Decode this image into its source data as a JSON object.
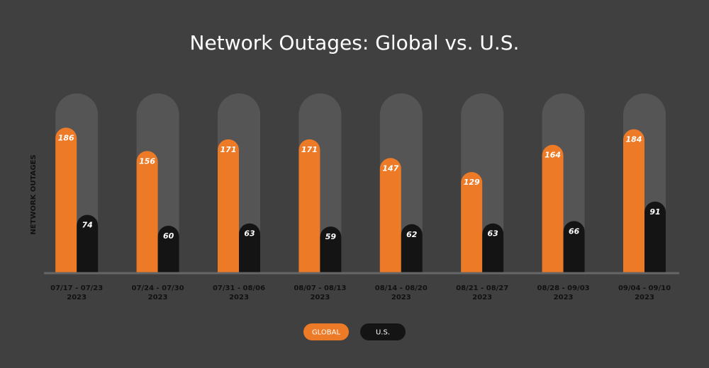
{
  "chart_data": {
    "type": "bar",
    "title": "Network Outages: Global vs. U.S.",
    "y_label": "NETWORK OUTAGES",
    "categories": [
      [
        "07/17 - 07/23",
        "2023"
      ],
      [
        "07/24 - 07/30",
        "2023"
      ],
      [
        "07/31 - 08/06",
        "2023"
      ],
      [
        "08/07 - 08/13",
        "2023"
      ],
      [
        "08/14 - 08/20",
        "2023"
      ],
      [
        "08/21 - 08/27",
        "2023"
      ],
      [
        "08/28 - 09/03",
        "2023"
      ],
      [
        "09/04 - 09/10",
        "2023"
      ]
    ],
    "series": [
      {
        "name": "GLOBAL",
        "color": "#ec7a26",
        "values": [
          186,
          156,
          171,
          171,
          147,
          129,
          164,
          184
        ]
      },
      {
        "name": "U.S.",
        "color": "#141414",
        "values": [
          74,
          60,
          63,
          59,
          62,
          63,
          66,
          91
        ]
      }
    ],
    "ylim": [
      0,
      230
    ]
  }
}
